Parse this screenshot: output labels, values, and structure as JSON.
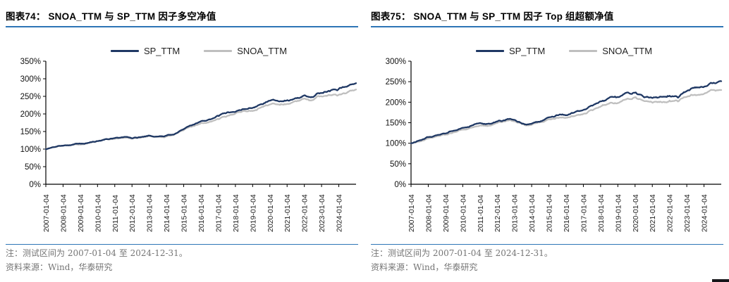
{
  "colors": {
    "accent_rule": "#2e75b6",
    "sp_ttm_line": "#1f3864",
    "snoa_ttm_line": "#bfbfbf",
    "note_text": "#757575"
  },
  "figures": [
    {
      "title": "图表74：  SNOA_TTM 与 SP_TTM 因子多空净值",
      "note": "注：测试区间为 2007-01-04 至 2024-12-31。",
      "source": "资料来源：Wind，华泰研究",
      "chart_data": {
        "type": "line",
        "title": "SNOA_TTM 与 SP_TTM 因子多空净值",
        "xlabel": "",
        "ylabel": "",
        "ylim": [
          0,
          350
        ],
        "y_tick_step": 50,
        "y_tick_format": "percent",
        "grid": false,
        "legend_position": "top",
        "x_range_years": [
          2007,
          2025
        ],
        "x_tick_labels": [
          "2007-01-04",
          "2008-01-04",
          "2009-01-04",
          "2010-01-04",
          "2011-01-04",
          "2012-01-04",
          "2013-01-04",
          "2014-01-04",
          "2015-01-04",
          "2016-01-04",
          "2017-01-04",
          "2018-01-04",
          "2019-01-04",
          "2020-01-04",
          "2021-01-04",
          "2022-01-04",
          "2023-01-04",
          "2024-01-04"
        ],
        "series": [
          {
            "name": "SP_TTM",
            "color": "#1f3864",
            "values": [
              100,
              106,
              112,
              115,
              117,
              121,
              124,
              128,
              131,
              132,
              130,
              133,
              136,
              134,
              137,
              144,
              155,
              168,
              180,
              186,
              192,
              199,
              205,
              210,
              216,
              229,
              238,
              234,
              240,
              247,
              252,
              246,
              259,
              266,
              272,
              283,
              293
            ]
          },
          {
            "name": "SNOA_TTM",
            "color": "#bfbfbf",
            "values": [
              100,
              105,
              110,
              114,
              116,
              120,
              123,
              127,
              130,
              131,
              129,
              132,
              135,
              134,
              136,
              142,
              152,
              164,
              175,
              181,
              186,
              193,
              199,
              204,
              209,
              221,
              229,
              225,
              230,
              237,
              241,
              236,
              247,
              252,
              257,
              266,
              276
            ]
          }
        ]
      }
    },
    {
      "title": "图表75：  SNOA_TTM 与 SP_TTM 因子 Top 组超额净值",
      "note": "注：测试区间为 2007-01-04 至 2024-12-31。",
      "source": "资料来源：Wind，华泰研究",
      "chart_data": {
        "type": "line",
        "title": "SNOA_TTM 与 SP_TTM 因子 Top 组超额净值",
        "xlabel": "",
        "ylabel": "",
        "ylim": [
          0,
          300
        ],
        "y_tick_step": 50,
        "y_tick_format": "percent",
        "grid": false,
        "legend_position": "top",
        "x_range_years": [
          2007,
          2025
        ],
        "x_tick_labels": [
          "2007-01-04",
          "2008-01-04",
          "2009-01-04",
          "2010-01-04",
          "2011-01-04",
          "2012-01-04",
          "2013-01-04",
          "2014-01-04",
          "2015-01-04",
          "2016-01-04",
          "2017-01-04",
          "2018-01-04",
          "2019-01-04",
          "2020-01-04",
          "2021-01-04",
          "2022-01-04",
          "2023-01-04",
          "2024-01-04"
        ],
        "series": [
          {
            "name": "SP_TTM",
            "color": "#1f3864",
            "values": [
              100,
              109,
              118,
              121,
              124,
              132,
              140,
              147,
              152,
              149,
              155,
              158,
              156,
              151,
              149,
              154,
              163,
              173,
              169,
              174,
              180,
              188,
              196,
              204,
              208,
              219,
              222,
              212,
              204,
              209,
              216,
              211,
              228,
              233,
              238,
              251,
              247
            ]
          },
          {
            "name": "SNOA_TTM",
            "color": "#bfbfbf",
            "values": [
              100,
              107,
              114,
              118,
              120,
              128,
              135,
              142,
              147,
              145,
              150,
              154,
              152,
              147,
              145,
              149,
              157,
              165,
              162,
              166,
              172,
              179,
              186,
              193,
              196,
              205,
              208,
              200,
              193,
              198,
              204,
              200,
              212,
              217,
              221,
              232,
              226
            ]
          }
        ]
      }
    }
  ]
}
